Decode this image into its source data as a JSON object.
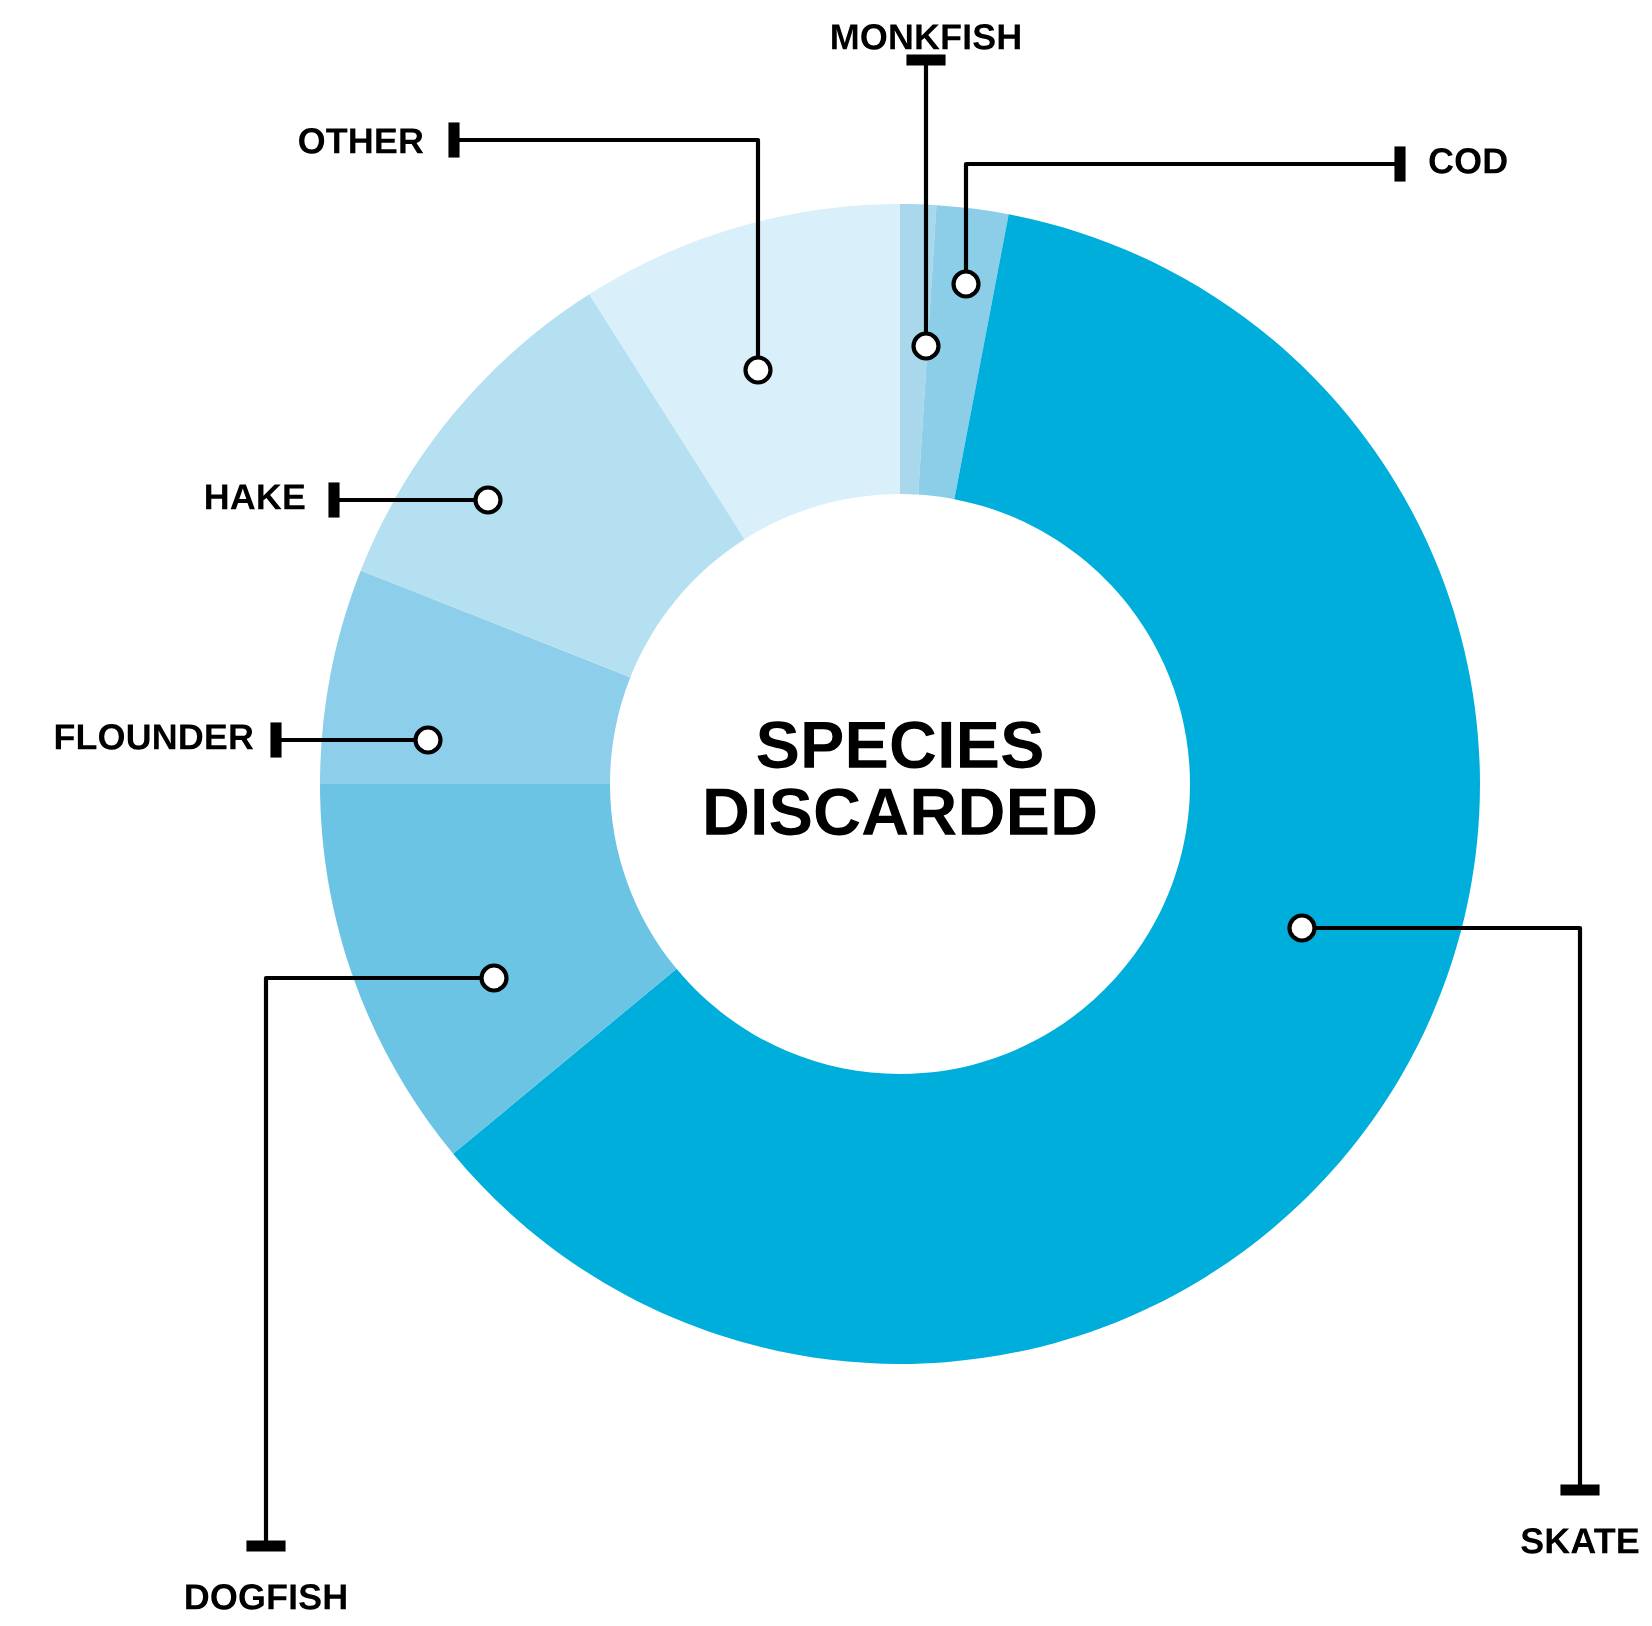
{
  "chart_data": {
    "type": "donut",
    "title": "SPECIES\nDISCARDED",
    "categories": [
      "MONKFISH",
      "COD",
      "SKATE",
      "DOGFISH",
      "FLOUNDER",
      "HAKE",
      "OTHER"
    ],
    "values": [
      1,
      2,
      61,
      11,
      6,
      10,
      9
    ],
    "colors": [
      "#a9d8ec",
      "#8ccde8",
      "#00aedc",
      "#6cc4e5",
      "#8dcfea",
      "#b5e0f2",
      "#d9eff9"
    ]
  }
}
